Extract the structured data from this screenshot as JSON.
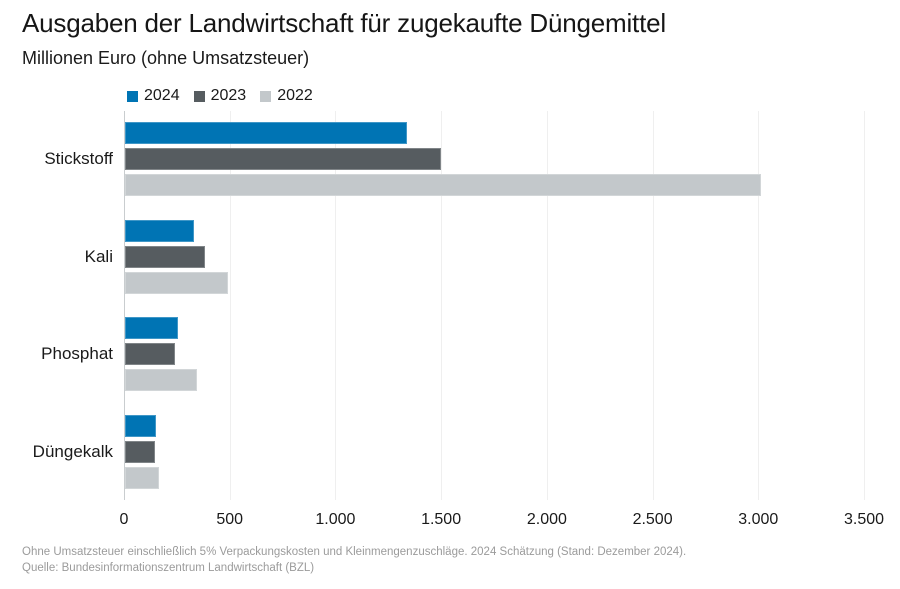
{
  "header": {
    "title": "Ausgaben der Landwirtschaft für zugekaufte Düngemittel",
    "subtitle": "Millionen Euro (ohne Umsatzsteuer)"
  },
  "chart_data": {
    "type": "bar",
    "orientation": "horizontal",
    "title": "Ausgaben der Landwirtschaft für zugekaufte Düngemittel",
    "subtitle": "Millionen Euro (ohne Umsatzsteuer)",
    "unit": "Millionen Euro",
    "categories": [
      "Stickstoff",
      "Kali",
      "Phosphat",
      "Düngekalk"
    ],
    "series": [
      {
        "name": "2024",
        "color": "#0074b4",
        "values": [
          1335,
          325,
          250,
          145
        ]
      },
      {
        "name": "2023",
        "color": "#565c60",
        "values": [
          1495,
          380,
          235,
          140
        ]
      },
      {
        "name": "2022",
        "color": "#c3c8cb",
        "values": [
          3010,
          485,
          340,
          160
        ]
      }
    ],
    "xlim": [
      0,
      3500
    ],
    "x_ticks": [
      0,
      500,
      1000,
      1500,
      2000,
      2500,
      3000,
      3500
    ],
    "x_tick_labels": [
      "0",
      "500",
      "1.000",
      "1.500",
      "2.000",
      "2.500",
      "3.000",
      "3.500"
    ],
    "grid": true,
    "legend_position": "top"
  },
  "footer": {
    "note": "Ohne Umsatzsteuer einschließlich 5% Verpackungskosten und Kleinmengenzuschläge. 2024 Schätzung (Stand: Dezember 2024).",
    "source": "Quelle: Bundesinformationszentrum Landwirtschaft (BZL)"
  },
  "colors": {
    "text": "#1a1a1a",
    "muted": "#9b9b9b",
    "gridline": "#efefef",
    "zero_line": "#c9cdcf",
    "background": "#ffffff"
  }
}
